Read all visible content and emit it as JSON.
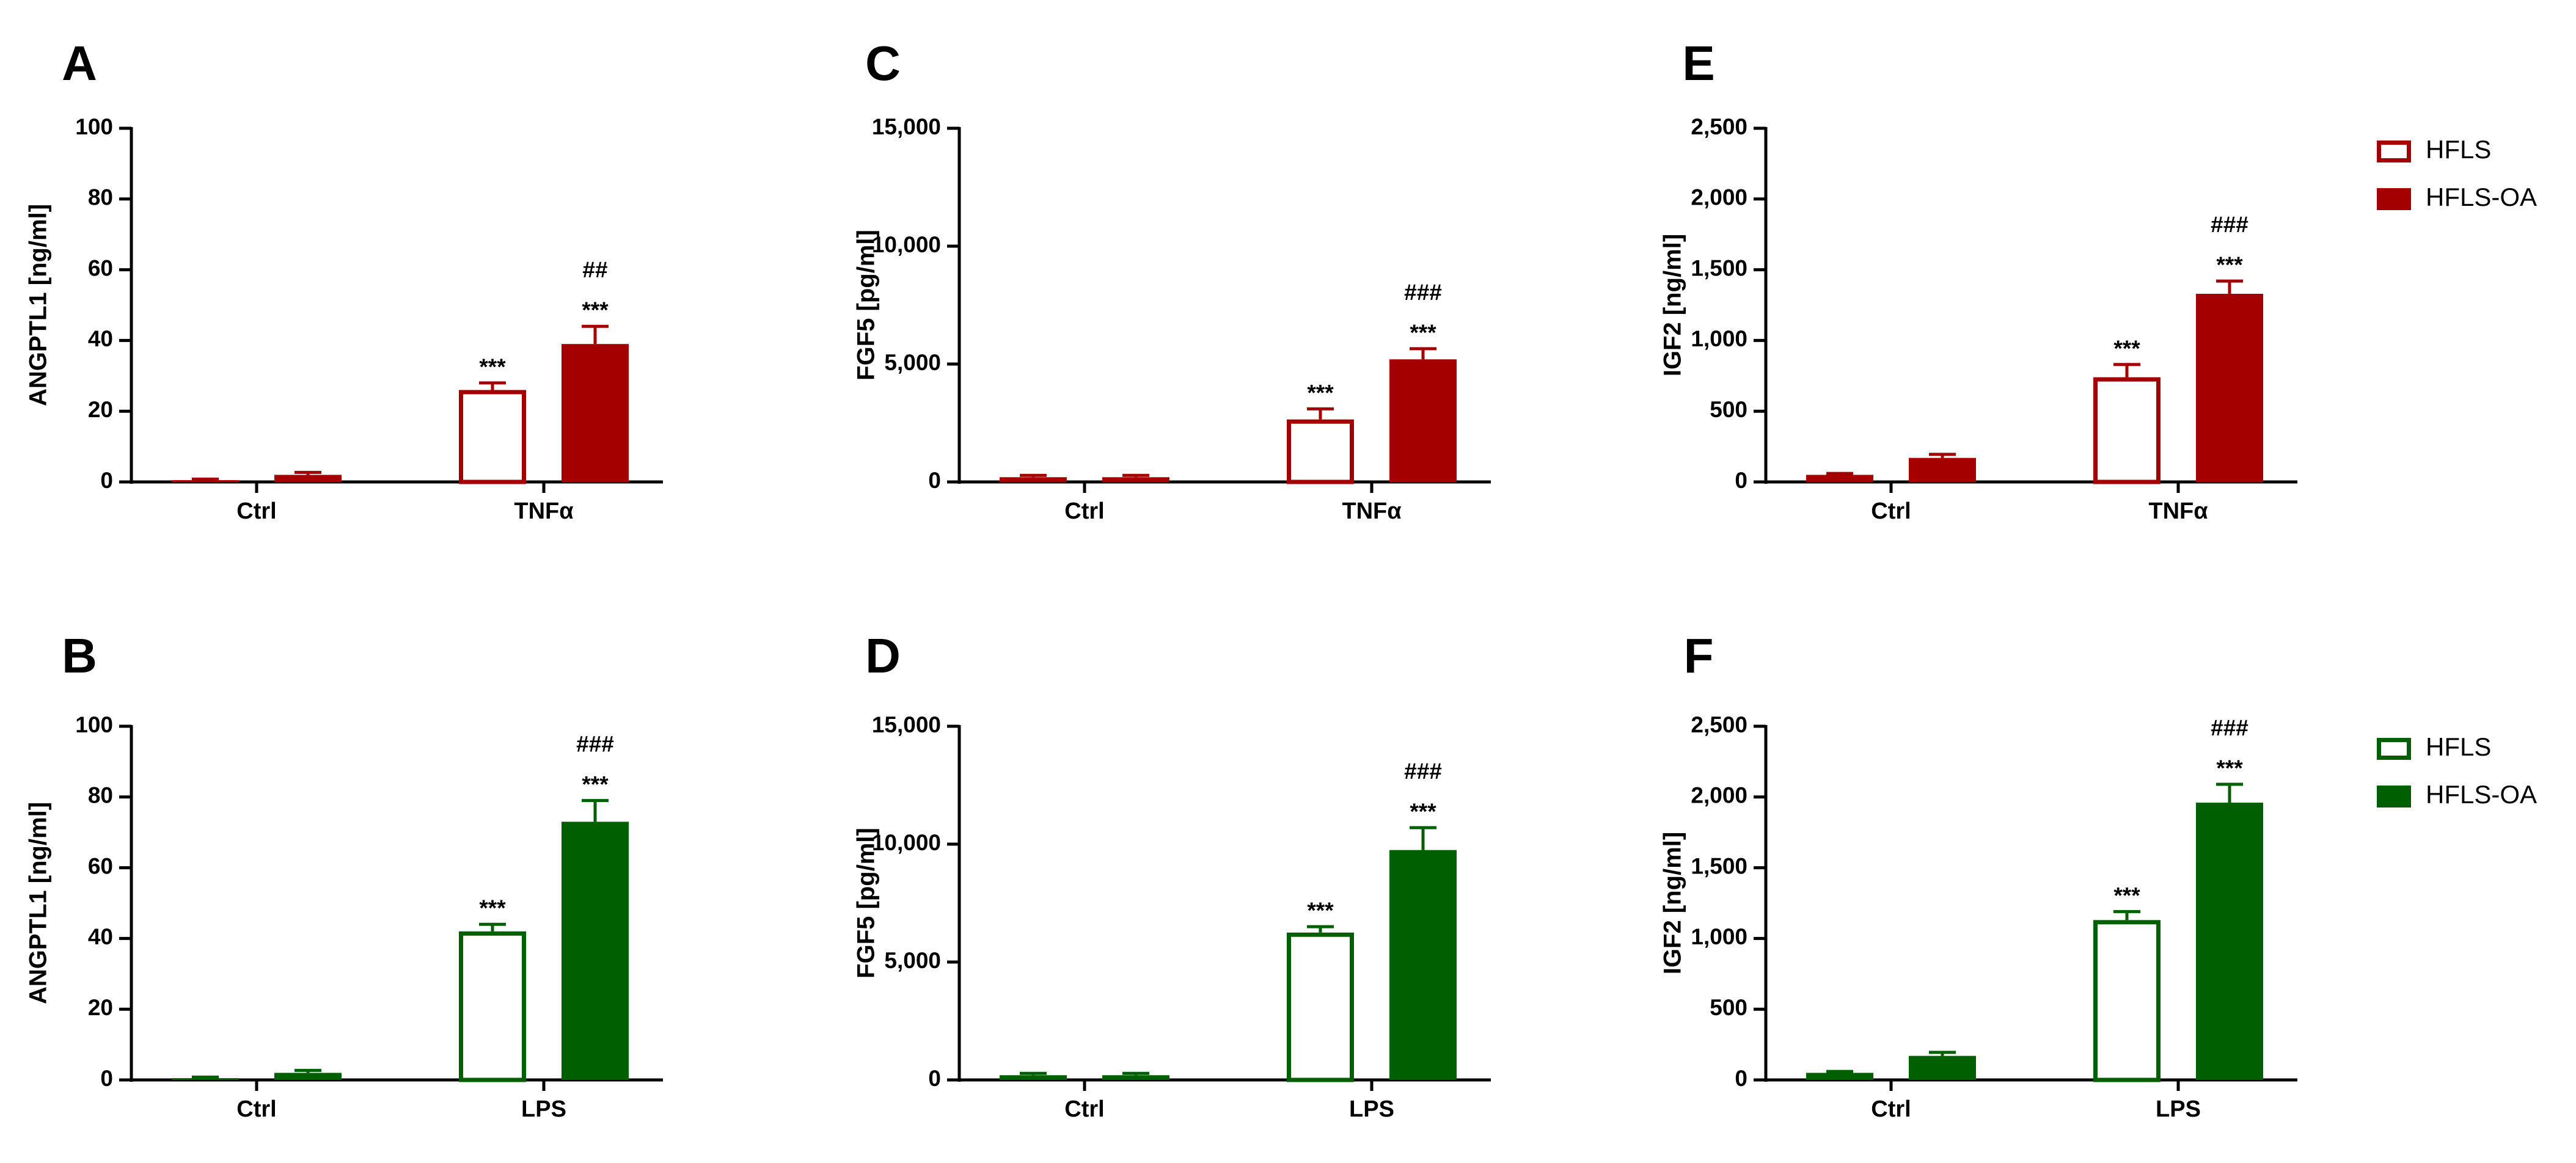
{
  "colors": {
    "red": "#a50000",
    "green": "#005f00"
  },
  "legends": [
    {
      "name": "red-legend",
      "color": "#a50000",
      "entries": [
        {
          "label": "HFLS",
          "filled": false
        },
        {
          "label": "HFLS-OA",
          "filled": true
        }
      ]
    },
    {
      "name": "green-legend",
      "color": "#005f00",
      "entries": [
        {
          "label": "HFLS",
          "filled": false
        },
        {
          "label": "HFLS-OA",
          "filled": true
        }
      ]
    }
  ],
  "chart_data": [
    {
      "panel": "A",
      "type": "bar",
      "color": "#a50000",
      "ylabel": "ANGPTL1 [ng/ml]",
      "ylim": [
        0,
        100
      ],
      "yticks": [
        0,
        20,
        40,
        60,
        80,
        100
      ],
      "ytick_labels": [
        "0",
        "20",
        "40",
        "60",
        "80",
        "100"
      ],
      "categories": [
        "Ctrl",
        "TNFα"
      ],
      "series": [
        {
          "name": "HFLS",
          "filled": false,
          "values": [
            0.5,
            26
          ],
          "errors": [
            0.3,
            2
          ],
          "annotations": [
            "",
            "***"
          ]
        },
        {
          "name": "HFLS-OA",
          "filled": true,
          "values": [
            2,
            39
          ],
          "errors": [
            0.7,
            5
          ],
          "annotations": [
            "",
            "***\n##"
          ]
        }
      ]
    },
    {
      "panel": "C",
      "type": "bar",
      "color": "#a50000",
      "ylabel": "FGF5 [pg/ml]",
      "ylim": [
        0,
        15000
      ],
      "yticks": [
        0,
        5000,
        10000,
        15000
      ],
      "ytick_labels": [
        "0",
        "5,000",
        "10,000",
        "15,000"
      ],
      "categories": [
        "Ctrl",
        "TNFα"
      ],
      "series": [
        {
          "name": "HFLS",
          "filled": false,
          "values": [
            200,
            2650
          ],
          "errors": [
            80,
            450
          ],
          "annotations": [
            "",
            "***"
          ]
        },
        {
          "name": "HFLS-OA",
          "filled": true,
          "values": [
            200,
            5200
          ],
          "errors": [
            80,
            450
          ],
          "annotations": [
            "",
            "***\n###"
          ]
        }
      ]
    },
    {
      "panel": "E",
      "type": "bar",
      "color": "#a50000",
      "ylabel": "IGF2 [ng/ml]",
      "ylim": [
        0,
        2500
      ],
      "yticks": [
        0,
        500,
        1000,
        1500,
        2000,
        2500
      ],
      "ytick_labels": [
        "0",
        "500",
        "1,000",
        "1,500",
        "2,000",
        "2,500"
      ],
      "categories": [
        "Ctrl",
        "TNFα"
      ],
      "series": [
        {
          "name": "HFLS",
          "filled": false,
          "values": [
            50,
            740
          ],
          "errors": [
            10,
            90
          ],
          "annotations": [
            "",
            "***"
          ]
        },
        {
          "name": "HFLS-OA",
          "filled": true,
          "values": [
            170,
            1330
          ],
          "errors": [
            25,
            90
          ],
          "annotations": [
            "",
            "***\n###"
          ]
        }
      ]
    },
    {
      "panel": "B",
      "type": "bar",
      "color": "#005f00",
      "ylabel": "ANGPTL1 [ng/ml]",
      "ylim": [
        0,
        100
      ],
      "yticks": [
        0,
        20,
        40,
        60,
        80,
        100
      ],
      "ytick_labels": [
        "0",
        "20",
        "40",
        "60",
        "80",
        "100"
      ],
      "categories": [
        "Ctrl",
        "LPS"
      ],
      "series": [
        {
          "name": "HFLS",
          "filled": false,
          "values": [
            0.5,
            42
          ],
          "errors": [
            0.3,
            2
          ],
          "annotations": [
            "",
            "***"
          ]
        },
        {
          "name": "HFLS-OA",
          "filled": true,
          "values": [
            2,
            73
          ],
          "errors": [
            0.7,
            6
          ],
          "annotations": [
            "",
            "***\n###"
          ]
        }
      ]
    },
    {
      "panel": "D",
      "type": "bar",
      "color": "#005f00",
      "ylabel": "FGF5 [pg/ml]",
      "ylim": [
        0,
        15000
      ],
      "yticks": [
        0,
        5000,
        10000,
        15000
      ],
      "ytick_labels": [
        "0",
        "5,000",
        "10,000",
        "15,000"
      ],
      "categories": [
        "Ctrl",
        "LPS"
      ],
      "series": [
        {
          "name": "HFLS",
          "filled": false,
          "values": [
            200,
            6250
          ],
          "errors": [
            80,
            250
          ],
          "annotations": [
            "",
            "***"
          ]
        },
        {
          "name": "HFLS-OA",
          "filled": true,
          "values": [
            200,
            9750
          ],
          "errors": [
            80,
            950
          ],
          "annotations": [
            "",
            "***\n###"
          ]
        }
      ]
    },
    {
      "panel": "F",
      "type": "bar",
      "color": "#005f00",
      "ylabel": "IGF2 [ng/ml]",
      "ylim": [
        0,
        2500
      ],
      "yticks": [
        0,
        500,
        1000,
        1500,
        2000,
        2500
      ],
      "ytick_labels": [
        "0",
        "500",
        "1,000",
        "1,500",
        "2,000",
        "2,500"
      ],
      "categories": [
        "Ctrl",
        "LPS"
      ],
      "series": [
        {
          "name": "HFLS",
          "filled": false,
          "values": [
            50,
            1130
          ],
          "errors": [
            10,
            60
          ],
          "annotations": [
            "",
            "***"
          ]
        },
        {
          "name": "HFLS-OA",
          "filled": true,
          "values": [
            170,
            1960
          ],
          "errors": [
            25,
            130
          ],
          "annotations": [
            "",
            "***\n###"
          ]
        }
      ]
    }
  ]
}
